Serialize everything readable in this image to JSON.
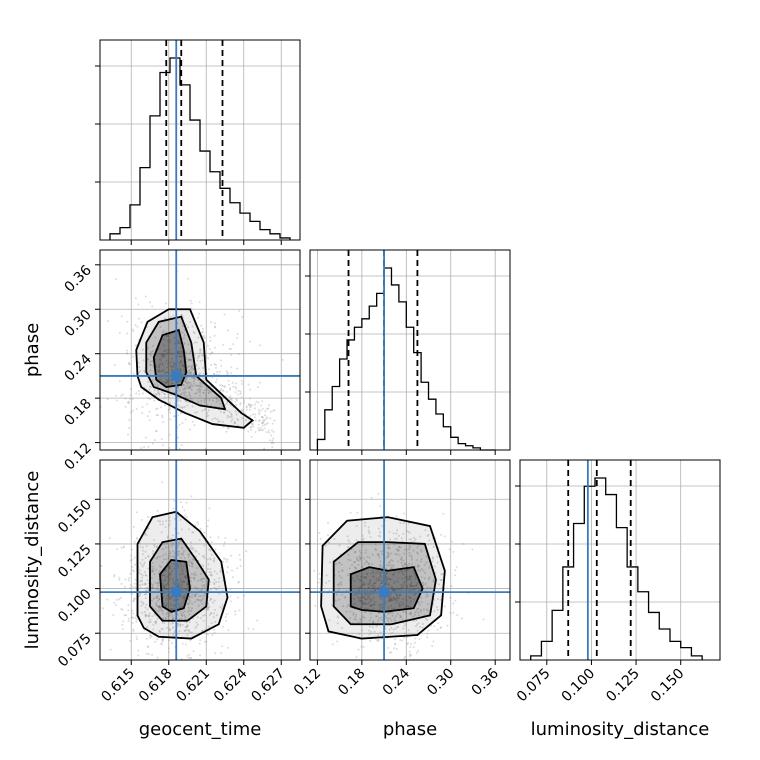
{
  "chart_data": {
    "type": "corner",
    "parameters": [
      "geocent_time",
      "phase",
      "luminosity_distance"
    ],
    "axis_labels": {
      "x": [
        "geocent_time",
        "phase",
        "luminosity_distance"
      ],
      "y": [
        "phase",
        "luminosity_distance"
      ]
    },
    "ranges": {
      "geocent_time": [
        0.6125,
        0.6285
      ],
      "phase": [
        0.11,
        0.38
      ],
      "luminosity_distance": [
        0.06,
        0.172
      ]
    },
    "ticks": {
      "geocent_time": [
        "0.615",
        "0.618",
        "0.621",
        "0.624",
        "0.627"
      ],
      "phase": [
        "0.12",
        "0.18",
        "0.24",
        "0.30",
        "0.36"
      ],
      "luminosity_distance": [
        "0.075",
        "0.100",
        "0.125",
        "0.150"
      ]
    },
    "truths": {
      "geocent_time": 0.6186,
      "phase": 0.21,
      "luminosity_distance": 0.098
    },
    "quantiles": {
      "geocent_time": [
        0.6178,
        0.619,
        0.6223
      ],
      "phase": [
        0.162,
        0.21,
        0.255
      ],
      "luminosity_distance": [
        0.087,
        0.103,
        0.122
      ]
    },
    "histograms": {
      "geocent_time": {
        "bin_edges": [
          0.6133,
          0.6141,
          0.6149,
          0.6157,
          0.6165,
          0.6173,
          0.6181,
          0.6189,
          0.6197,
          0.6205,
          0.6213,
          0.6221,
          0.6229,
          0.6237,
          0.6245,
          0.6253,
          0.6261,
          0.6269,
          0.6277
        ],
        "counts": [
          3,
          6,
          17,
          35,
          60,
          81,
          88,
          75,
          58,
          43,
          33,
          25,
          18,
          13,
          9,
          5,
          3,
          1
        ]
      },
      "phase": {
        "bin_edges": [
          0.12,
          0.13,
          0.14,
          0.15,
          0.16,
          0.17,
          0.18,
          0.19,
          0.2,
          0.21,
          0.22,
          0.23,
          0.24,
          0.25,
          0.26,
          0.27,
          0.28,
          0.29,
          0.3,
          0.31,
          0.32,
          0.33,
          0.34,
          0.35,
          0.36
        ],
        "counts": [
          5,
          19,
          30,
          43,
          52,
          58,
          62,
          68,
          74,
          86,
          78,
          70,
          58,
          46,
          32,
          24,
          17,
          11,
          6,
          3,
          2,
          1,
          0,
          0
        ]
      },
      "luminosity_distance": {
        "bin_edges": [
          0.066,
          0.072,
          0.078,
          0.084,
          0.09,
          0.096,
          0.102,
          0.108,
          0.114,
          0.12,
          0.126,
          0.132,
          0.138,
          0.144,
          0.15,
          0.156,
          0.162
        ],
        "counts": [
          2,
          9,
          24,
          45,
          66,
          84,
          88,
          80,
          64,
          45,
          33,
          23,
          15,
          9,
          6,
          2
        ]
      }
    },
    "densities": [
      {
        "x": "geocent_time",
        "y": "phase",
        "center": [
          0.6184,
          0.215
        ],
        "contours": [
          [
            [
              0.617,
              0.205
            ],
            [
              0.6168,
              0.235
            ],
            [
              0.6175,
              0.265
            ],
            [
              0.6188,
              0.272
            ],
            [
              0.6192,
              0.245
            ],
            [
              0.6194,
              0.215
            ],
            [
              0.619,
              0.198
            ],
            [
              0.6178,
              0.195
            ]
          ],
          [
            [
              0.6162,
              0.215
            ],
            [
              0.6162,
              0.255
            ],
            [
              0.6172,
              0.283
            ],
            [
              0.619,
              0.29
            ],
            [
              0.6198,
              0.255
            ],
            [
              0.6202,
              0.21
            ],
            [
              0.6222,
              0.18
            ],
            [
              0.6225,
              0.165
            ],
            [
              0.6205,
              0.17
            ],
            [
              0.6185,
              0.185
            ],
            [
              0.6168,
              0.195
            ]
          ],
          [
            [
              0.6155,
              0.21
            ],
            [
              0.6154,
              0.245
            ],
            [
              0.6163,
              0.283
            ],
            [
              0.618,
              0.3
            ],
            [
              0.6197,
              0.3
            ],
            [
              0.6208,
              0.255
            ],
            [
              0.621,
              0.205
            ],
            [
              0.6238,
              0.16
            ],
            [
              0.6247,
              0.15
            ],
            [
              0.624,
              0.14
            ],
            [
              0.6215,
              0.145
            ],
            [
              0.6193,
              0.16
            ],
            [
              0.6172,
              0.178
            ],
            [
              0.6158,
              0.195
            ]
          ]
        ]
      },
      {
        "x": "geocent_time",
        "y": "luminosity_distance",
        "center": [
          0.6185,
          0.1
        ],
        "contours": [
          [
            [
              0.6175,
              0.09
            ],
            [
              0.6173,
              0.108
            ],
            [
              0.6182,
              0.116
            ],
            [
              0.6194,
              0.115
            ],
            [
              0.6197,
              0.1
            ],
            [
              0.6192,
              0.089
            ],
            [
              0.6182,
              0.087
            ]
          ],
          [
            [
              0.6165,
              0.09
            ],
            [
              0.6165,
              0.115
            ],
            [
              0.6175,
              0.126
            ],
            [
              0.619,
              0.128
            ],
            [
              0.6202,
              0.116
            ],
            [
              0.6212,
              0.105
            ],
            [
              0.621,
              0.09
            ],
            [
              0.6195,
              0.082
            ],
            [
              0.6175,
              0.082
            ]
          ],
          [
            [
              0.6155,
              0.085
            ],
            [
              0.6155,
              0.125
            ],
            [
              0.6167,
              0.14
            ],
            [
              0.6186,
              0.143
            ],
            [
              0.6205,
              0.132
            ],
            [
              0.6222,
              0.115
            ],
            [
              0.6227,
              0.095
            ],
            [
              0.622,
              0.08
            ],
            [
              0.6198,
              0.072
            ],
            [
              0.6172,
              0.073
            ],
            [
              0.616,
              0.078
            ]
          ]
        ]
      },
      {
        "x": "phase",
        "y": "luminosity_distance",
        "center": [
          0.215,
          0.1
        ],
        "contours": [
          [
            [
              0.165,
              0.09
            ],
            [
              0.165,
              0.108
            ],
            [
              0.19,
              0.112
            ],
            [
              0.215,
              0.11
            ],
            [
              0.25,
              0.112
            ],
            [
              0.262,
              0.1
            ],
            [
              0.25,
              0.089
            ],
            [
              0.21,
              0.087
            ],
            [
              0.18,
              0.088
            ]
          ],
          [
            [
              0.142,
              0.09
            ],
            [
              0.142,
              0.115
            ],
            [
              0.175,
              0.126
            ],
            [
              0.215,
              0.126
            ],
            [
              0.265,
              0.125
            ],
            [
              0.28,
              0.105
            ],
            [
              0.272,
              0.085
            ],
            [
              0.22,
              0.08
            ],
            [
              0.165,
              0.08
            ]
          ],
          [
            [
              0.125,
              0.09
            ],
            [
              0.127,
              0.124
            ],
            [
              0.16,
              0.138
            ],
            [
              0.215,
              0.14
            ],
            [
              0.272,
              0.135
            ],
            [
              0.292,
              0.11
            ],
            [
              0.287,
              0.085
            ],
            [
              0.255,
              0.074
            ],
            [
              0.18,
              0.072
            ],
            [
              0.135,
              0.076
            ]
          ]
        ]
      }
    ]
  }
}
